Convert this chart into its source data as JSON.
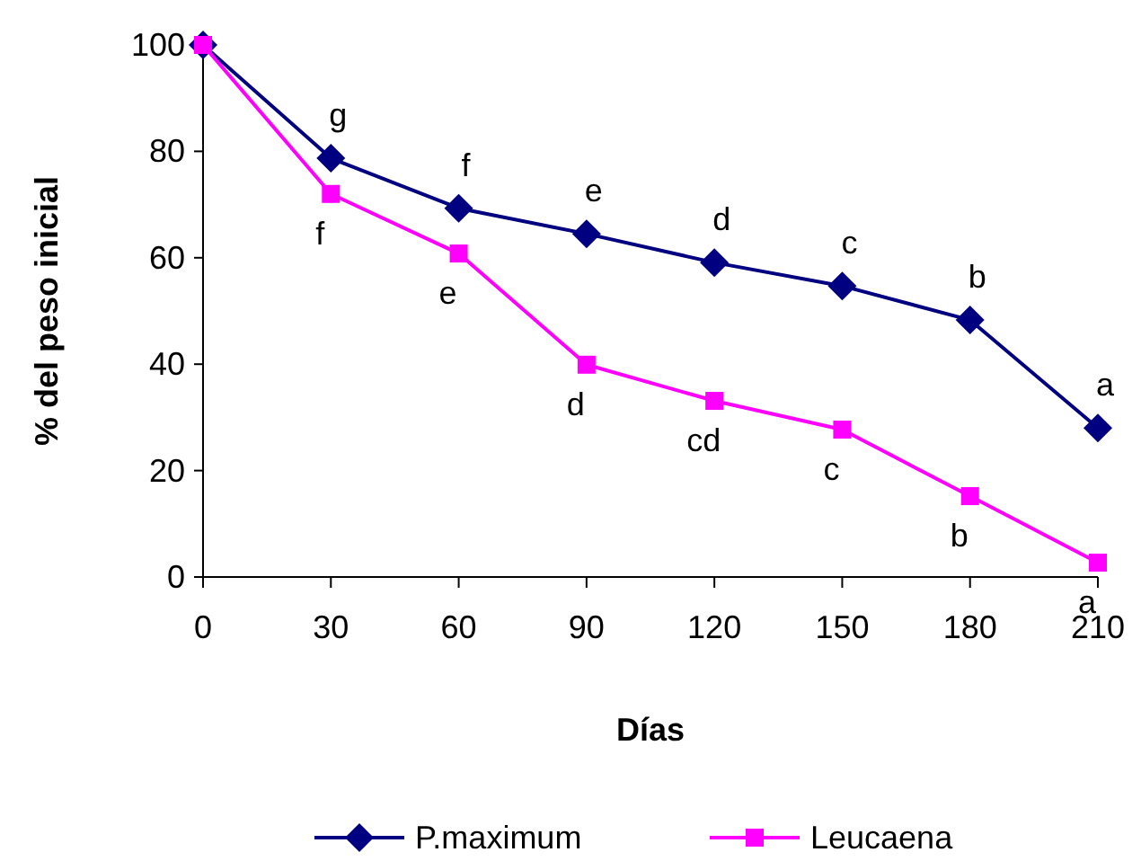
{
  "chart_data": {
    "type": "line",
    "xlabel": "Días",
    "ylabel": "% del peso inicial",
    "x": [
      0,
      30,
      60,
      90,
      120,
      150,
      180,
      210
    ],
    "xlim": [
      0,
      210
    ],
    "xticks": [
      0,
      30,
      60,
      90,
      120,
      150,
      180,
      210
    ],
    "ylim": [
      0,
      100
    ],
    "yticks": [
      0,
      20,
      40,
      60,
      80,
      100
    ],
    "legend": "bottom",
    "series": [
      {
        "name": "P.maximum",
        "color": "#000080",
        "marker": "diamond",
        "values": [
          100,
          78.7,
          69.3,
          64.5,
          59.1,
          54.7,
          48.3,
          28
        ]
      },
      {
        "name": "Leucaena",
        "color": "#ff00ff",
        "marker": "square",
        "values": [
          100,
          72,
          60.8,
          39.9,
          33.1,
          27.7,
          15.2,
          2.7
        ]
      }
    ],
    "annotations": [
      {
        "text": "g",
        "x": 30,
        "y": 78.7
      },
      {
        "text": "f",
        "x": 60,
        "y": 69.3
      },
      {
        "text": "e",
        "x": 90,
        "y": 64.5
      },
      {
        "text": "d",
        "x": 120,
        "y": 59.1
      },
      {
        "text": "c",
        "x": 150,
        "y": 54.7
      },
      {
        "text": "b",
        "x": 180,
        "y": 48.3
      },
      {
        "text": "a",
        "x": 210,
        "y": 28
      },
      {
        "text": "f",
        "x": 30,
        "y": 72
      },
      {
        "text": "e",
        "x": 60,
        "y": 60.8
      },
      {
        "text": "d",
        "x": 90,
        "y": 39.9
      },
      {
        "text": "cd",
        "x": 120,
        "y": 33.1
      },
      {
        "text": "c",
        "x": 150,
        "y": 27.7
      },
      {
        "text": "b",
        "x": 180,
        "y": 15.2
      },
      {
        "text": "a",
        "x": 210,
        "y": 2.7
      }
    ]
  }
}
